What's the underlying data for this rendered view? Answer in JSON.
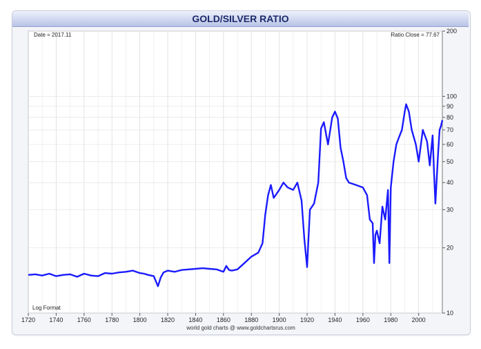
{
  "header": {
    "title": "GOLD/SILVER RATIO"
  },
  "annotations": {
    "date": "Date = 2017.11",
    "ratio_close": "Ratio Close = 77.67",
    "log_format": "Log Format",
    "footer": "world gold charts @ www.goldchartsrus.com"
  },
  "colors": {
    "line": "#1a1aff",
    "title_text": "#1c2a6c"
  },
  "chart_data": {
    "type": "line",
    "title": "GOLD/SILVER RATIO",
    "xlabel": "",
    "ylabel": "",
    "y_scale": "log",
    "xlim": [
      1720,
      2017
    ],
    "ylim": [
      10,
      200
    ],
    "grid": true,
    "x_ticks": [
      "1720",
      "1740",
      "1760",
      "1780",
      "1800",
      "1820",
      "1840",
      "1860",
      "1880",
      "1900",
      "1920",
      "1940",
      "1960",
      "1980",
      "2000"
    ],
    "y_ticks": [
      "200",
      "100",
      "90",
      "80",
      "70",
      "60",
      "50",
      "40",
      "30",
      "20",
      "10"
    ],
    "series": [
      {
        "x": [
          1720,
          1725,
          1730,
          1735,
          1740,
          1745,
          1750,
          1755,
          1760,
          1765,
          1770,
          1775,
          1780,
          1785,
          1790,
          1795,
          1800,
          1803,
          1806,
          1810,
          1813,
          1815,
          1817,
          1820,
          1825,
          1830,
          1835,
          1840,
          1845,
          1850,
          1855,
          1860,
          1862,
          1864,
          1866,
          1870,
          1875,
          1880,
          1885,
          1888,
          1890,
          1892,
          1894,
          1896,
          1900,
          1903,
          1906,
          1910,
          1913,
          1916,
          1918,
          1920,
          1922,
          1925,
          1928,
          1930,
          1932,
          1935,
          1938,
          1940,
          1942,
          1944,
          1946,
          1948,
          1950,
          1955,
          1960,
          1963,
          1965,
          1967,
          1968,
          1969,
          1970,
          1972,
          1974,
          1976,
          1978,
          1979,
          1980,
          1982,
          1984,
          1986,
          1988,
          1990,
          1991,
          1993,
          1995,
          1998,
          2000,
          2003,
          2006,
          2008,
          2010,
          2011,
          2012,
          2014,
          2015,
          2016,
          2017
        ],
        "values": [
          15,
          15.1,
          14.9,
          15.2,
          14.8,
          15,
          15.1,
          14.7,
          15.2,
          14.9,
          14.8,
          15.3,
          15.2,
          15.4,
          15.5,
          15.7,
          15.3,
          15.2,
          15,
          14.8,
          13.3,
          14.6,
          15.4,
          15.7,
          15.5,
          15.8,
          15.9,
          16,
          16.1,
          16,
          15.9,
          15.5,
          16.5,
          15.8,
          15.7,
          15.9,
          17,
          18.2,
          19,
          21,
          28.5,
          35,
          39,
          34,
          37,
          40,
          38,
          37,
          40,
          33,
          22,
          16.3,
          30,
          32,
          40,
          71,
          76,
          60,
          80,
          85,
          79,
          58,
          50,
          42,
          40,
          39,
          38,
          35,
          27,
          26,
          17,
          23,
          24,
          21,
          31,
          27,
          37,
          17,
          38,
          50,
          60,
          65,
          70,
          85,
          92,
          85,
          70,
          60,
          50,
          70,
          62,
          48,
          66,
          45,
          32,
          55,
          70,
          73,
          77.67
        ]
      }
    ]
  }
}
